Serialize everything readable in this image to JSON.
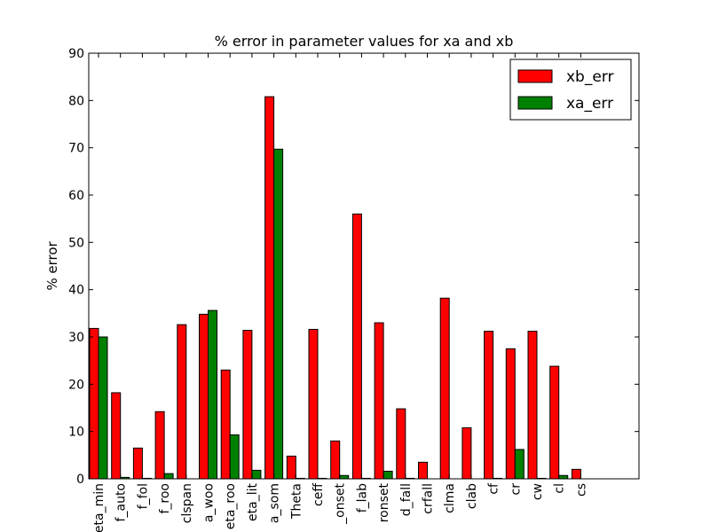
{
  "chart_data": {
    "type": "bar",
    "title": "% error in parameter values for xa and xb",
    "xlabel": "",
    "ylabel": "% error",
    "ylim": [
      0,
      90
    ],
    "yticks": [
      0,
      10,
      20,
      30,
      40,
      50,
      60,
      70,
      80,
      90
    ],
    "categories": [
      "eta_min",
      "f_auto",
      "f_fol",
      "f_roo",
      "clspan",
      "a_woo",
      "eta_roo",
      "eta_lit",
      "a_som",
      "Theta",
      "ceff",
      "_onset",
      "f_lab",
      "ronset",
      "d_fall",
      "crfall",
      "clma",
      "clab",
      "cf",
      "cr",
      "cw",
      "cl",
      "cs"
    ],
    "series": [
      {
        "name": "xb_err",
        "color": "#ff0000",
        "values": [
          31.8,
          18.2,
          6.5,
          14.2,
          32.6,
          34.8,
          23.0,
          31.4,
          80.8,
          4.8,
          31.6,
          8.0,
          56.0,
          33.0,
          14.8,
          3.5,
          38.2,
          10.8,
          31.2,
          27.5,
          31.2,
          23.8,
          2.0
        ]
      },
      {
        "name": "xa_err",
        "color": "#008000",
        "values": [
          30.0,
          0.3,
          0.1,
          1.1,
          0.0,
          35.6,
          9.3,
          1.8,
          69.7,
          0.1,
          0.1,
          0.7,
          0.1,
          1.6,
          0.1,
          0.0,
          0.0,
          0.0,
          0.1,
          6.2,
          0.1,
          0.7,
          0.0
        ]
      }
    ],
    "legend_position": "top-right",
    "grid": false
  }
}
